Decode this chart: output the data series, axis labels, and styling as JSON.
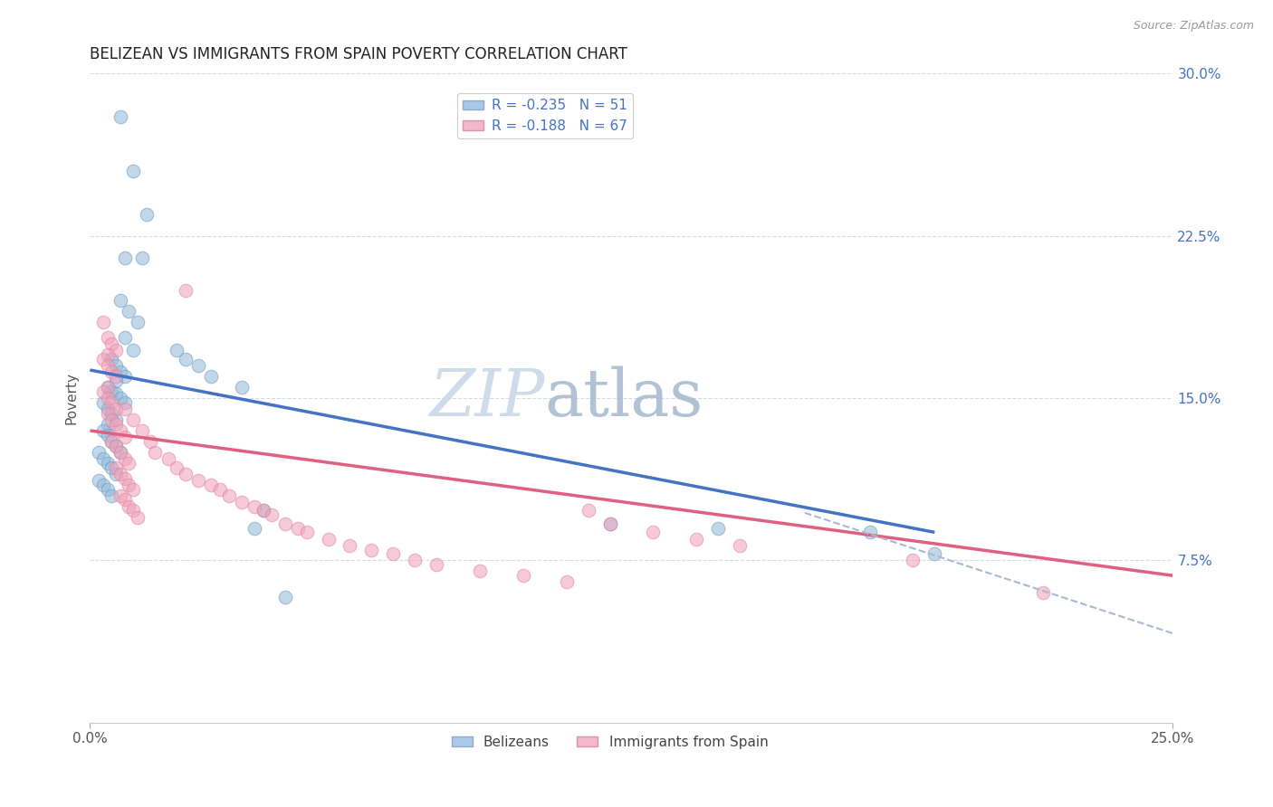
{
  "title": "BELIZEAN VS IMMIGRANTS FROM SPAIN POVERTY CORRELATION CHART",
  "source": "Source: ZipAtlas.com",
  "ylabel": "Poverty",
  "xlim": [
    0.0,
    0.25
  ],
  "ylim": [
    0.0,
    0.3
  ],
  "xticks": [
    0.0,
    0.25
  ],
  "xticklabels": [
    "0.0%",
    "25.0%"
  ],
  "yticks": [
    0.0,
    0.075,
    0.15,
    0.225,
    0.3
  ],
  "right_yticklabels": [
    "",
    "7.5%",
    "15.0%",
    "22.5%",
    "30.0%"
  ],
  "blue_scatter_x": [
    0.007,
    0.01,
    0.013,
    0.008,
    0.012,
    0.007,
    0.009,
    0.011,
    0.008,
    0.01,
    0.005,
    0.006,
    0.007,
    0.008,
    0.006,
    0.004,
    0.005,
    0.006,
    0.007,
    0.008,
    0.003,
    0.004,
    0.005,
    0.006,
    0.004,
    0.003,
    0.004,
    0.005,
    0.006,
    0.007,
    0.002,
    0.003,
    0.004,
    0.005,
    0.006,
    0.002,
    0.003,
    0.004,
    0.005,
    0.02,
    0.022,
    0.025,
    0.028,
    0.035,
    0.038,
    0.04,
    0.045,
    0.12,
    0.145,
    0.18,
    0.195
  ],
  "blue_scatter_y": [
    0.28,
    0.255,
    0.235,
    0.215,
    0.215,
    0.195,
    0.19,
    0.185,
    0.178,
    0.172,
    0.168,
    0.165,
    0.162,
    0.16,
    0.158,
    0.155,
    0.153,
    0.152,
    0.15,
    0.148,
    0.148,
    0.145,
    0.143,
    0.14,
    0.138,
    0.135,
    0.133,
    0.13,
    0.128,
    0.125,
    0.125,
    0.122,
    0.12,
    0.118,
    0.115,
    0.112,
    0.11,
    0.108,
    0.105,
    0.172,
    0.168,
    0.165,
    0.16,
    0.155,
    0.09,
    0.098,
    0.058,
    0.092,
    0.09,
    0.088,
    0.078
  ],
  "pink_scatter_x": [
    0.003,
    0.004,
    0.005,
    0.006,
    0.004,
    0.003,
    0.004,
    0.005,
    0.006,
    0.004,
    0.003,
    0.004,
    0.005,
    0.006,
    0.004,
    0.005,
    0.006,
    0.007,
    0.008,
    0.005,
    0.006,
    0.007,
    0.008,
    0.009,
    0.006,
    0.007,
    0.008,
    0.009,
    0.01,
    0.007,
    0.008,
    0.009,
    0.01,
    0.011,
    0.008,
    0.01,
    0.012,
    0.014,
    0.015,
    0.018,
    0.02,
    0.022,
    0.025,
    0.028,
    0.03,
    0.032,
    0.035,
    0.038,
    0.04,
    0.042,
    0.045,
    0.048,
    0.05,
    0.055,
    0.06,
    0.065,
    0.07,
    0.075,
    0.08,
    0.09,
    0.1,
    0.11,
    0.115,
    0.12,
    0.13,
    0.14,
    0.15,
    0.022,
    0.19,
    0.22
  ],
  "pink_scatter_y": [
    0.185,
    0.178,
    0.175,
    0.172,
    0.17,
    0.168,
    0.165,
    0.162,
    0.16,
    0.155,
    0.153,
    0.15,
    0.148,
    0.145,
    0.143,
    0.14,
    0.138,
    0.135,
    0.132,
    0.13,
    0.128,
    0.125,
    0.122,
    0.12,
    0.118,
    0.115,
    0.113,
    0.11,
    0.108,
    0.105,
    0.103,
    0.1,
    0.098,
    0.095,
    0.145,
    0.14,
    0.135,
    0.13,
    0.125,
    0.122,
    0.118,
    0.115,
    0.112,
    0.11,
    0.108,
    0.105,
    0.102,
    0.1,
    0.098,
    0.096,
    0.092,
    0.09,
    0.088,
    0.085,
    0.082,
    0.08,
    0.078,
    0.075,
    0.073,
    0.07,
    0.068,
    0.065,
    0.098,
    0.092,
    0.088,
    0.085,
    0.082,
    0.2,
    0.075,
    0.06
  ],
  "blue_line_x": [
    0.0,
    0.195
  ],
  "blue_line_y": [
    0.163,
    0.088
  ],
  "pink_line_x": [
    0.0,
    0.25
  ],
  "pink_line_y": [
    0.135,
    0.068
  ],
  "dash_line_x": [
    0.165,
    0.255
  ],
  "dash_line_y": [
    0.097,
    0.038
  ],
  "watermark_zip": "ZIP",
  "watermark_atlas": "atlas",
  "blue_color": "#90b8d8",
  "pink_color": "#f0a0b8",
  "blue_edge_color": "#6898c0",
  "pink_edge_color": "#e080a0",
  "blue_line_color": "#4472c4",
  "pink_line_color": "#e06080",
  "dash_line_color": "#a8b8d0",
  "grid_color": "#c8d4e0",
  "watermark_zip_color": "#c8d8e8",
  "watermark_atlas_color": "#a8bcd0"
}
